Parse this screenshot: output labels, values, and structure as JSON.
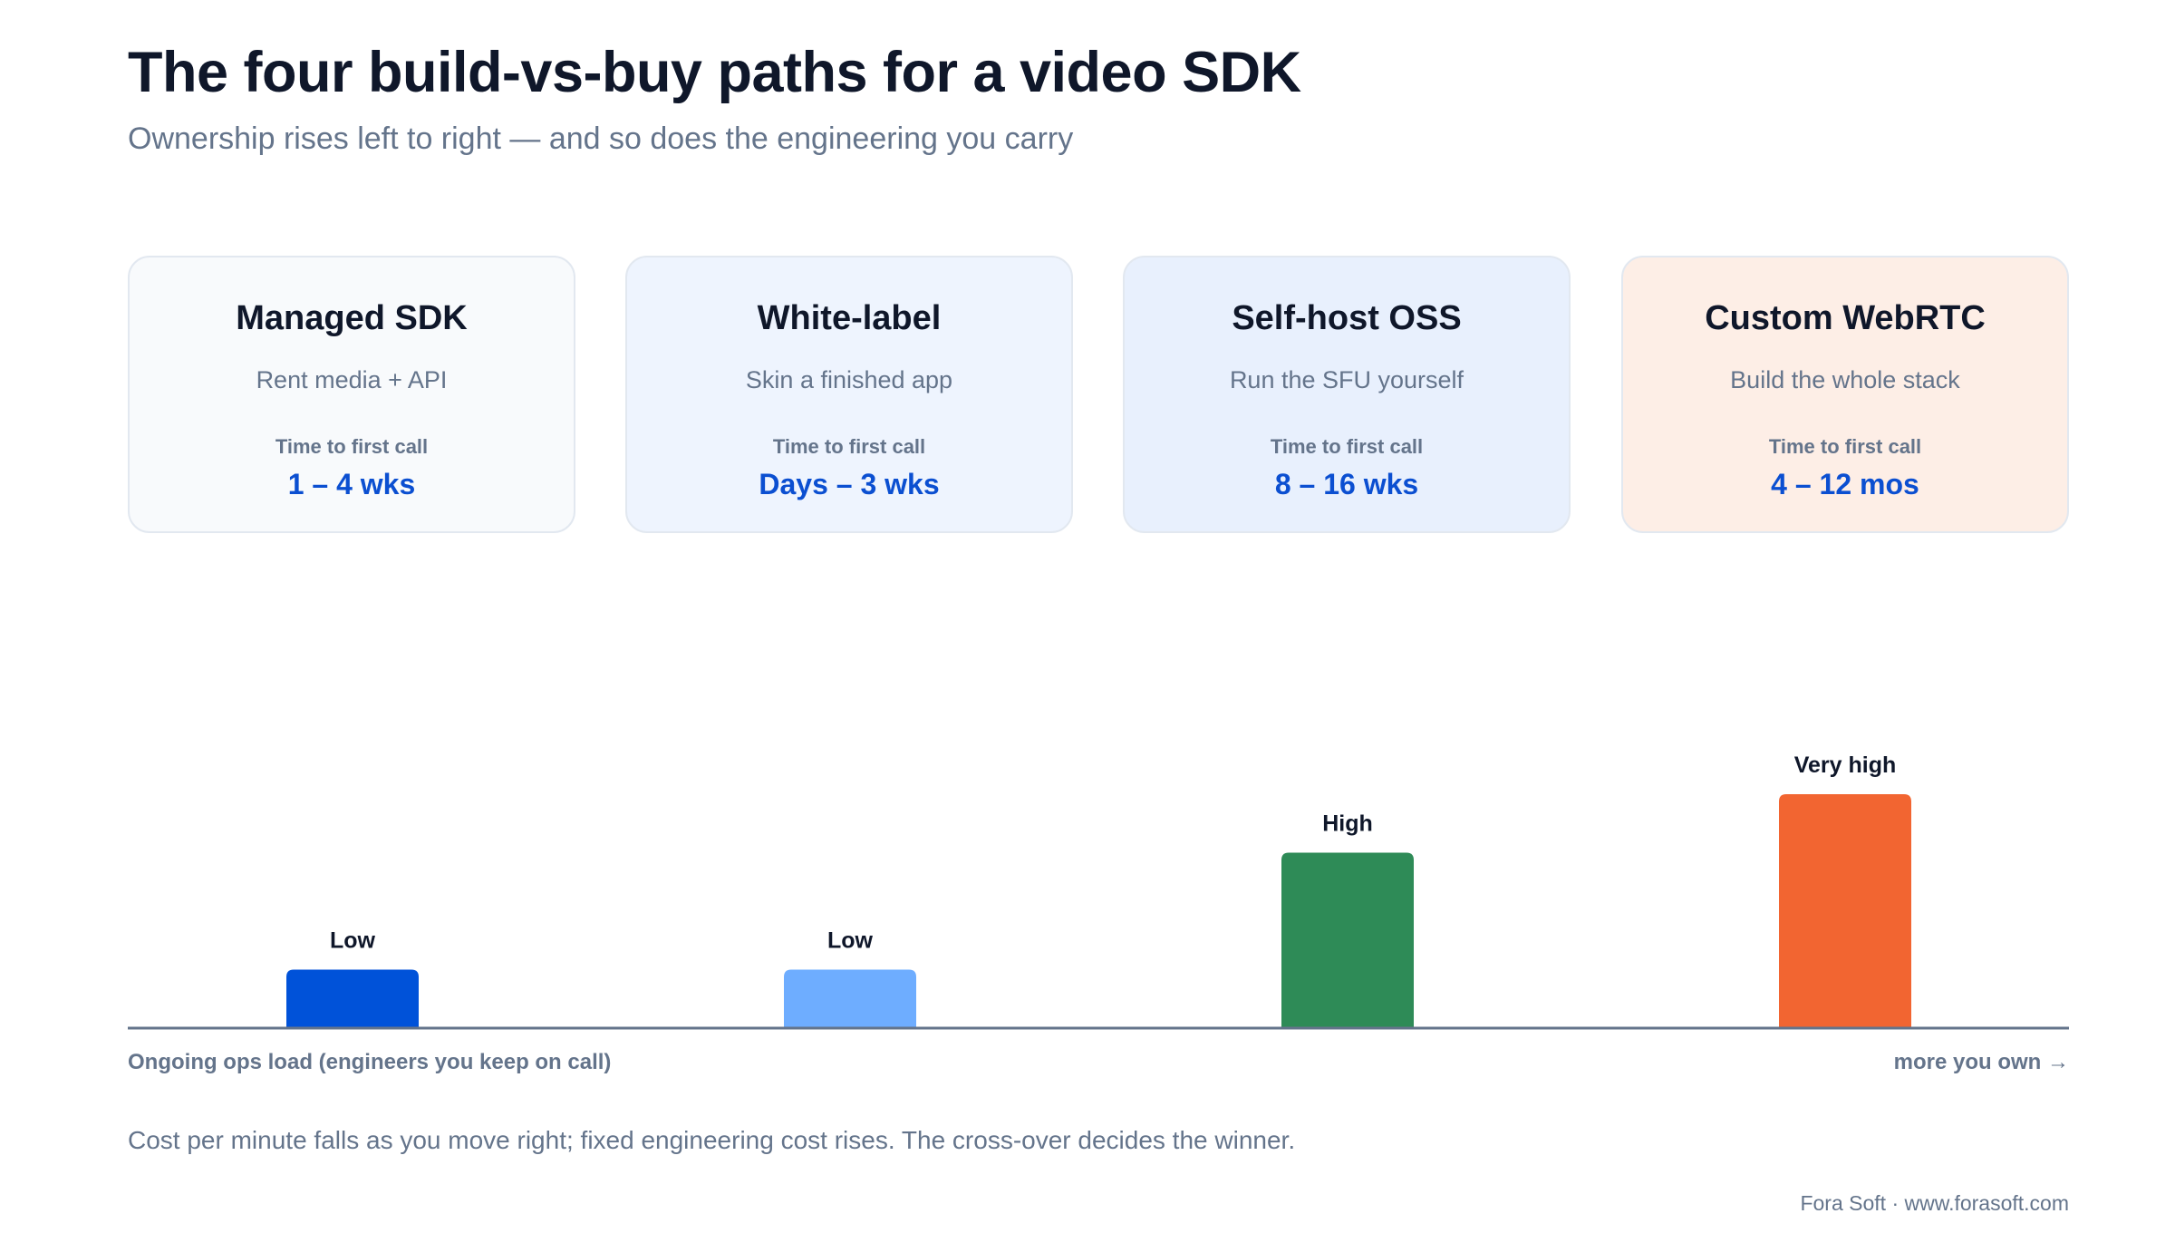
{
  "title": "The four build-vs-buy paths for a video SDK",
  "subtitle": "Ownership rises left to right — and so does the engineering you carry",
  "cards": [
    {
      "title": "Managed SDK",
      "description": "Rent media + API",
      "metric_label": "Time to first call",
      "metric_value": "1 – 4 wks",
      "bg": "#f8fafc"
    },
    {
      "title": "White-label",
      "description": "Skin a finished app",
      "metric_label": "Time to first call",
      "metric_value": "Days – 3 wks",
      "bg": "#eef4fe"
    },
    {
      "title": "Self-host OSS",
      "description": "Run the SFU yourself",
      "metric_label": "Time to first call",
      "metric_value": "8 – 16 wks",
      "bg": "#e8f0fd"
    },
    {
      "title": "Custom WebRTC",
      "description": "Build the whole stack",
      "metric_label": "Time to first call",
      "metric_value": "4 – 12 mos",
      "bg": "#fdeee6"
    }
  ],
  "chart_data": {
    "type": "bar",
    "categories": [
      "Managed SDK",
      "White-label",
      "Self-host OSS",
      "Custom WebRTC"
    ],
    "values": [
      1,
      1,
      3,
      4
    ],
    "value_labels": [
      "Low",
      "Low",
      "High",
      "Very high"
    ],
    "colors": [
      "#0052d9",
      "#6eadff",
      "#2e8b57",
      "#f26531"
    ],
    "xlabel": "Ongoing ops load (engineers you keep on call)",
    "x_end_label": "more you own →",
    "ylim": [
      0,
      4
    ],
    "grid": false,
    "legend": "none"
  },
  "footnote": "Cost per minute falls as you move right; fixed engineering cost rises. The cross-over decides the winner.",
  "credit": "Fora Soft · www.forasoft.com"
}
